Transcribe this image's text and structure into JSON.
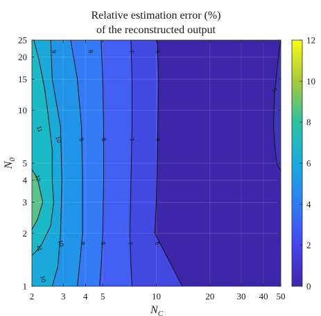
{
  "chart_data": {
    "type": "contour",
    "title": [
      "Relative estimation error (%)",
      "of the reconstructed output"
    ],
    "xlabel": {
      "base": "N",
      "sub": "C"
    },
    "ylabel": {
      "base": "N",
      "sub": "0"
    },
    "x_scale": "log",
    "y_scale": "log",
    "xlim": [
      2,
      50
    ],
    "ylim": [
      1,
      25
    ],
    "x_ticks": [
      2,
      3,
      4,
      5,
      10,
      20,
      30,
      40,
      50
    ],
    "y_ticks": [
      1,
      2,
      3,
      4,
      5,
      10,
      15,
      20,
      25
    ],
    "colorbar": {
      "min": 0,
      "max": 12,
      "ticks": [
        0,
        2,
        4,
        6,
        8,
        10,
        12
      ]
    },
    "colormap": [
      "#3e26a8",
      "#4743f0",
      "#2f7df8",
      "#18acde",
      "#2bc2a0",
      "#a8c83a",
      "#f9fb14"
    ],
    "fill_levels": [
      {
        "level": 5,
        "color": "#3e36b4"
      },
      {
        "level": 6,
        "color": "#4248e0"
      },
      {
        "level": 7,
        "color": "#435ef3"
      },
      {
        "level": 8,
        "color": "#3479f6"
      },
      {
        "level": 9,
        "color": "#2294e8"
      },
      {
        "level": 10,
        "color": "#1aa9d8"
      },
      {
        "level": 11,
        "color": "#1bb8c6"
      },
      {
        "level": 12,
        "color": "#5ac38c"
      }
    ],
    "contours": [
      {
        "level": 6,
        "label": "6",
        "points": [
          [
            10.1,
            25
          ],
          [
            10.3,
            15
          ],
          [
            10.2,
            8
          ],
          [
            10,
            3
          ],
          [
            9.8,
            2
          ],
          [
            11,
            1.6
          ],
          [
            14,
            1
          ]
        ]
      },
      {
        "level": 7,
        "label": "7",
        "points": [
          [
            7.2,
            25
          ],
          [
            7.3,
            15
          ],
          [
            7.3,
            8
          ],
          [
            7.2,
            4
          ],
          [
            7.1,
            2
          ],
          [
            7.2,
            1.3
          ],
          [
            7.3,
            1
          ]
        ]
      },
      {
        "level": 8,
        "label": "8",
        "points": [
          [
            4.9,
            25
          ],
          [
            5,
            15
          ],
          [
            5.05,
            8
          ],
          [
            5.05,
            4
          ],
          [
            5,
            2
          ],
          [
            4.9,
            1.3
          ],
          [
            4.8,
            1
          ]
        ]
      },
      {
        "level": 9,
        "label": "9",
        "points": [
          [
            3.3,
            25
          ],
          [
            3.6,
            15
          ],
          [
            3.8,
            8
          ],
          [
            3.85,
            4
          ],
          [
            3.85,
            2
          ],
          [
            3.7,
            1.3
          ],
          [
            3.6,
            1
          ]
        ]
      },
      {
        "level": 10,
        "label": "10",
        "points": [
          [
            2.55,
            25
          ],
          [
            2.6,
            15
          ],
          [
            2.9,
            8
          ],
          [
            2.95,
            4
          ],
          [
            2.9,
            2
          ],
          [
            2.8,
            1.3
          ],
          [
            2.6,
            1
          ]
        ]
      },
      {
        "level": 11,
        "label": "11",
        "points": [
          [
            2.05,
            25
          ],
          [
            2.2,
            19
          ],
          [
            2.35,
            13.5
          ],
          [
            2.45,
            10
          ],
          [
            2.6,
            6
          ],
          [
            2.6,
            4
          ],
          [
            2.65,
            3
          ],
          [
            2.55,
            2.2
          ],
          [
            2.25,
            1.7
          ],
          [
            2.08,
            1.55
          ],
          [
            2,
            1.5
          ]
        ]
      },
      {
        "level": 12,
        "label": "12",
        "points": [
          [
            2,
            4.6
          ],
          [
            2.15,
            4.1
          ],
          [
            2.3,
            3
          ],
          [
            2.15,
            2.4
          ],
          [
            2,
            2.1
          ]
        ]
      },
      {
        "level": 5,
        "label": "5",
        "points": [
          [
            50,
            25
          ],
          [
            48.5,
            20
          ],
          [
            46,
            12
          ],
          [
            45.5,
            8
          ],
          [
            46.5,
            6
          ],
          [
            47.5,
            5
          ],
          [
            50,
            4.5
          ]
        ]
      }
    ],
    "contour_labels": [
      {
        "text": "9",
        "x": 2.65,
        "y": 21.5
      },
      {
        "text": "8",
        "x": 4.25,
        "y": 21.5
      },
      {
        "text": "7",
        "x": 7.2,
        "y": 21.5
      },
      {
        "text": "6",
        "x": 10.15,
        "y": 21.5
      },
      {
        "text": "5",
        "x": 46,
        "y": 13
      },
      {
        "text": "11",
        "x": 2.2,
        "y": 7.8
      },
      {
        "text": "10",
        "x": 2.8,
        "y": 6.8
      },
      {
        "text": "9",
        "x": 3.78,
        "y": 6.8
      },
      {
        "text": "8",
        "x": 5.05,
        "y": 6.8
      },
      {
        "text": "7",
        "x": 7.25,
        "y": 6.8
      },
      {
        "text": "6",
        "x": 10.2,
        "y": 6.8
      },
      {
        "text": "12",
        "x": 2.15,
        "y": 4.1
      },
      {
        "text": "11",
        "x": 2.2,
        "y": 1.65
      },
      {
        "text": "10",
        "x": 2.9,
        "y": 1.75
      },
      {
        "text": "9",
        "x": 3.85,
        "y": 1.75
      },
      {
        "text": "8",
        "x": 5.0,
        "y": 1.75
      },
      {
        "text": "7",
        "x": 7.1,
        "y": 1.75
      },
      {
        "text": "6",
        "x": 10.1,
        "y": 1.75
      },
      {
        "text": "10",
        "x": 2.3,
        "y": 1.1
      }
    ]
  }
}
